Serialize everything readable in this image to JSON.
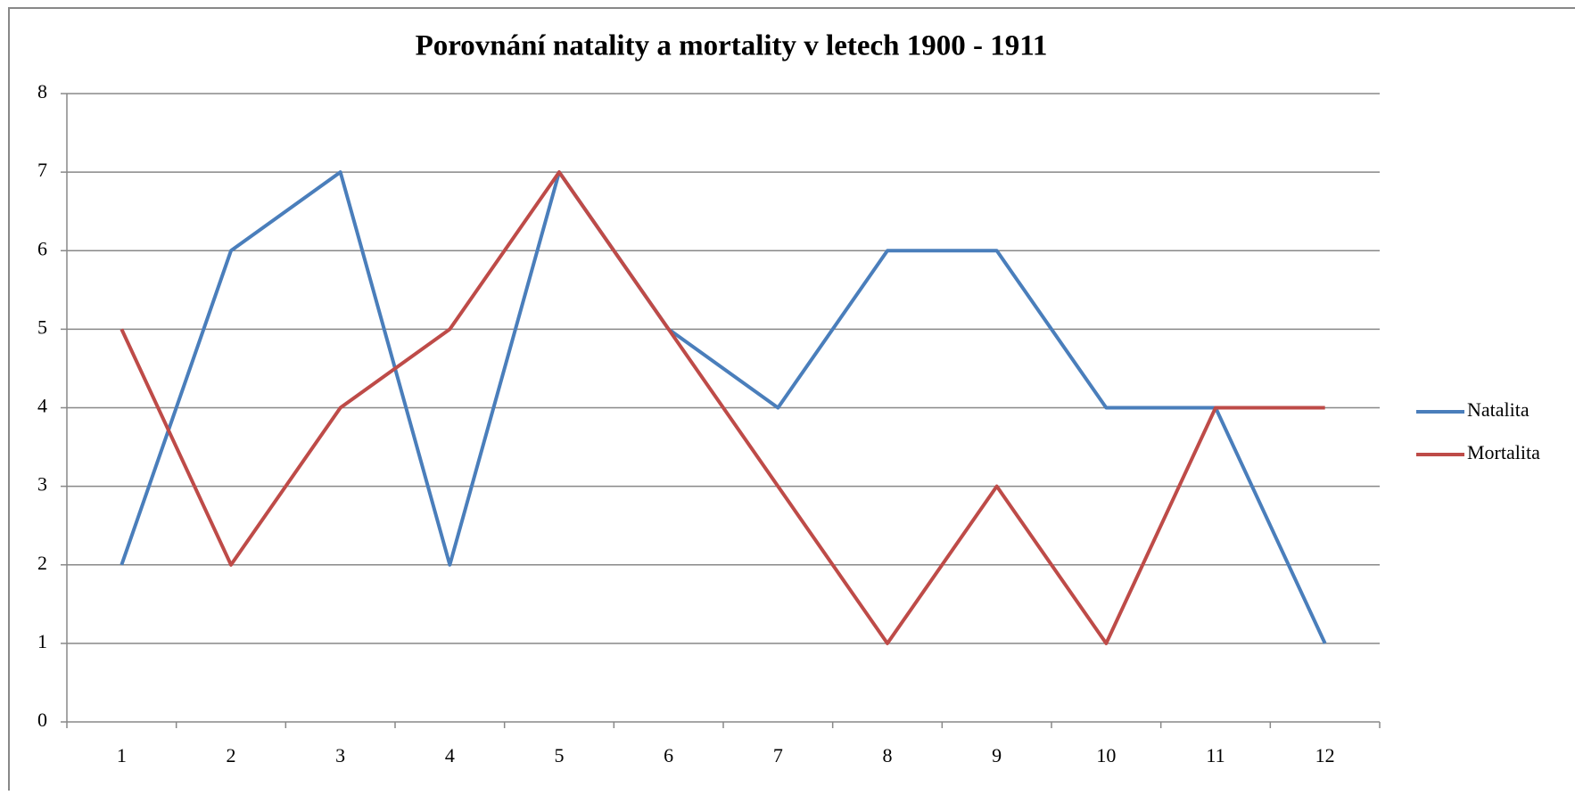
{
  "chart_data": {
    "type": "line",
    "title": "Porovnání natality a mortality v letech 1900 - 1911",
    "categories": [
      "1",
      "2",
      "3",
      "4",
      "5",
      "6",
      "7",
      "8",
      "9",
      "10",
      "11",
      "12"
    ],
    "series": [
      {
        "name": "Natalita",
        "color": "#4a7ebb",
        "values": [
          2,
          6,
          7,
          2,
          7,
          5,
          4,
          6,
          6,
          4,
          4,
          1
        ]
      },
      {
        "name": "Mortalita",
        "color": "#be4b48",
        "values": [
          5,
          2,
          4,
          5,
          7,
          5,
          3,
          1,
          3,
          1,
          4,
          4
        ]
      }
    ],
    "ylim": [
      0,
      8
    ],
    "yticks": [
      0,
      1,
      2,
      3,
      4,
      5,
      6,
      7,
      8
    ],
    "grid": true,
    "legend": "right"
  }
}
